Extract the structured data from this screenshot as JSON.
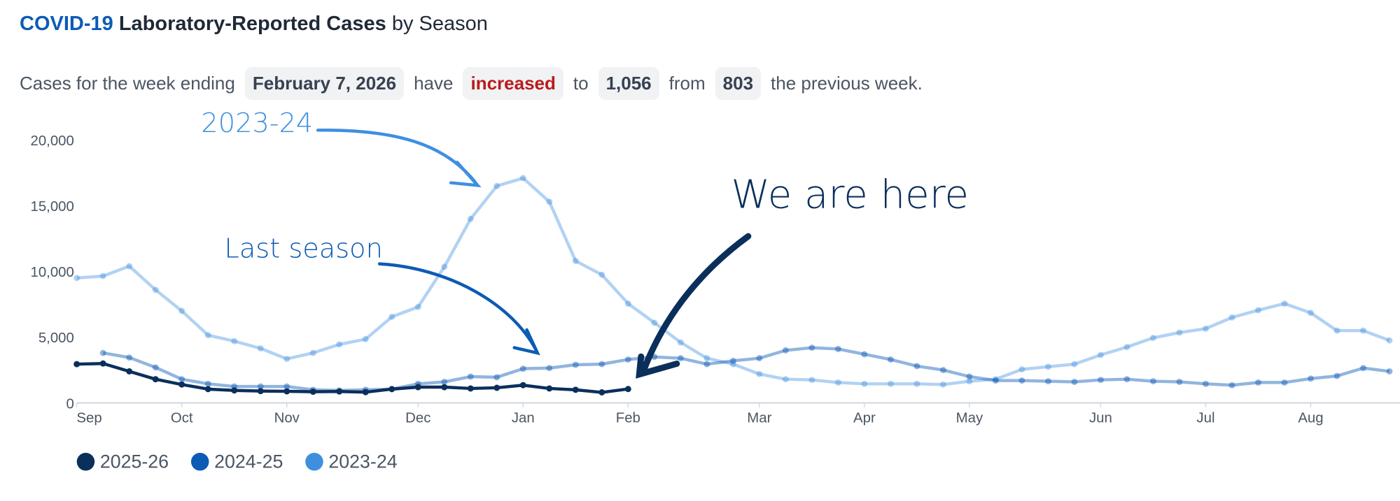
{
  "header": {
    "title_accent": "COVID-19",
    "title_main": "Laboratory-Reported Cases",
    "title_rest": "by Season"
  },
  "summary": [
    "Cases for the week ending",
    "February 7, 2026",
    "have",
    "increased",
    "to",
    "1,056",
    "from",
    "803",
    "the previous week."
  ],
  "chart_data": {
    "type": "line",
    "x": [
      0,
      1,
      2,
      3,
      4,
      5,
      6,
      7,
      8,
      9,
      10,
      11,
      12,
      13,
      14,
      15,
      16,
      17,
      18,
      19,
      20,
      21,
      22,
      23,
      24,
      25,
      26,
      27,
      28,
      29,
      30,
      31,
      32,
      33,
      34,
      35,
      36,
      37,
      38,
      39,
      40,
      41,
      42,
      43,
      44,
      45,
      46,
      47,
      48,
      49,
      50
    ],
    "xlim": [
      0,
      50.4
    ],
    "xticks": [
      {
        "value": 0,
        "label": "Sep"
      },
      {
        "value": 4,
        "label": "Oct"
      },
      {
        "value": 8,
        "label": "Nov"
      },
      {
        "value": 13,
        "label": "Dec"
      },
      {
        "value": 17,
        "label": "Jan"
      },
      {
        "value": 21,
        "label": "Feb"
      },
      {
        "value": 26,
        "label": "Mar"
      },
      {
        "value": 30,
        "label": "Apr"
      },
      {
        "value": 34,
        "label": "May"
      },
      {
        "value": 39,
        "label": "Jun"
      },
      {
        "value": 43,
        "label": "Jul"
      },
      {
        "value": 47,
        "label": "Aug"
      }
    ],
    "ylim": [
      0,
      20000
    ],
    "yticks": [
      0,
      {
        "value": 5000,
        "label": "5,000"
      },
      {
        "value": 10000,
        "label": "10,000"
      },
      {
        "value": 15000,
        "label": "15,000"
      },
      {
        "value": 20000,
        "label": "20,000"
      }
    ],
    "grid": false,
    "series": [
      {
        "name": "2025-26",
        "color": "#0b2f5b",
        "values": [
          2950,
          3000,
          2400,
          1800,
          1400,
          1050,
          950,
          900,
          880,
          850,
          870,
          820,
          1050,
          1200,
          1200,
          1100,
          1150,
          1350,
          1100,
          1000,
          803,
          1056,
          null,
          null,
          null,
          null,
          null,
          null,
          null,
          null,
          null,
          null,
          null,
          null,
          null,
          null,
          null,
          null,
          null,
          null,
          null,
          null,
          null,
          null,
          null,
          null,
          null,
          null,
          null,
          null,
          null
        ]
      },
      {
        "name": "2024-25",
        "color": "#0d5bb5",
        "values": [
          null,
          3800,
          3450,
          2700,
          1800,
          1450,
          1250,
          1250,
          1250,
          1000,
          950,
          1000,
          1050,
          1450,
          1600,
          2000,
          1950,
          2600,
          2650,
          2900,
          2950,
          3300,
          3500,
          3400,
          2950,
          3200,
          3400,
          4000,
          4200,
          4100,
          3700,
          3300,
          2800,
          2500,
          2000,
          1700,
          1700,
          1650,
          1600,
          1750,
          1800,
          1650,
          1600,
          1450,
          1350,
          1550,
          1550,
          1850,
          2050,
          2650,
          2400
        ]
      },
      {
        "name": "2023-24",
        "color": "#3f8fdf",
        "values": [
          9500,
          9650,
          10400,
          8600,
          7000,
          5150,
          4700,
          4150,
          3350,
          3800,
          4450,
          4850,
          6550,
          7300,
          10350,
          14000,
          16500,
          17100,
          15300,
          10800,
          9750,
          7550,
          6100,
          4600,
          3400,
          2950,
          2200,
          1800,
          1750,
          1550,
          1450,
          1450,
          1450,
          1400,
          1650,
          1800,
          2550,
          2750,
          2950,
          3650,
          4250,
          4950,
          5350,
          5650,
          6500,
          7050,
          7550,
          6850,
          5500,
          5500,
          4750
        ]
      }
    ],
    "annotations": [
      "2023-24",
      "Last season",
      "We are here"
    ]
  }
}
